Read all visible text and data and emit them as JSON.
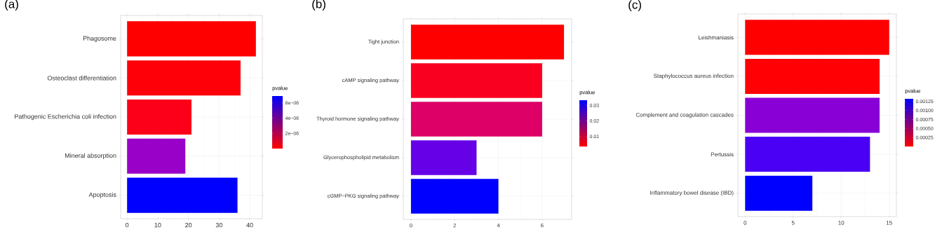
{
  "chart_data": [
    {
      "type": "bar",
      "orientation": "horizontal",
      "title": "(a)",
      "categories": [
        "Phagosome",
        "Osteoclast differentiation",
        "Pathogenic Escherichia coli infection",
        "Mineral absorption",
        "Apoptosis"
      ],
      "values": [
        42,
        37,
        21,
        19,
        36
      ],
      "colors": [
        "#ff0000",
        "#fe0008",
        "#fb0018",
        "#9900c8",
        "#0000ff"
      ],
      "xlim": [
        -2.1,
        44.1
      ],
      "xticks": [
        0,
        10,
        20,
        30,
        40
      ],
      "grid": true,
      "clabel": "pvalue",
      "clim": [
        0,
        6.9e-06
      ],
      "cticks": [
        {
          "value": 2e-06,
          "label": "2e−06"
        },
        {
          "value": 4e-06,
          "label": "4e−06"
        },
        {
          "value": 6e-06,
          "label": "6e−06"
        }
      ]
    },
    {
      "type": "bar",
      "orientation": "horizontal",
      "title": "(b)",
      "categories": [
        "Tight junction",
        "cAMP signaling pathway",
        "Thyroid hormone signaling pathway",
        "Glycerophospholipid metabolism",
        "cGMP−PKG signaling pathway"
      ],
      "values": [
        7,
        6,
        6,
        3,
        4
      ],
      "colors": [
        "#ff0000",
        "#fa0020",
        "#dd0066",
        "#6600e6",
        "#0000ff"
      ],
      "xlim": [
        -0.35,
        7.35
      ],
      "xticks": [
        0,
        2,
        4,
        6
      ],
      "grid": true,
      "clabel": "pvalue",
      "clim": [
        0.0035,
        0.0333
      ],
      "cticks": [
        0.01,
        0.02,
        0.03
      ]
    },
    {
      "type": "bar",
      "orientation": "horizontal",
      "title": "(c)",
      "categories": [
        "Leishmaniasis",
        "Staphylococcus aureus infection",
        "Complement and coagulation cascades",
        "Pertussis",
        "Inflammatory bowel disease (IBD)"
      ],
      "values": [
        15,
        14,
        14,
        13,
        7
      ],
      "colors": [
        "#ff0000",
        "#ff0005",
        "#8800d6",
        "#4a00f5",
        "#0000ff"
      ],
      "xlim": [
        -0.75,
        15.75
      ],
      "xticks": [
        0,
        5,
        10,
        15
      ],
      "grid": true,
      "clabel": "pvalue",
      "clim": [
        0,
        0.00132
      ],
      "cticks": [
        0.00025,
        {
          "value": 0.0005,
          "label": "0.00050"
        },
        0.00075,
        {
          "value": 0.001,
          "label": "0.00100"
        },
        0.00125
      ]
    }
  ]
}
